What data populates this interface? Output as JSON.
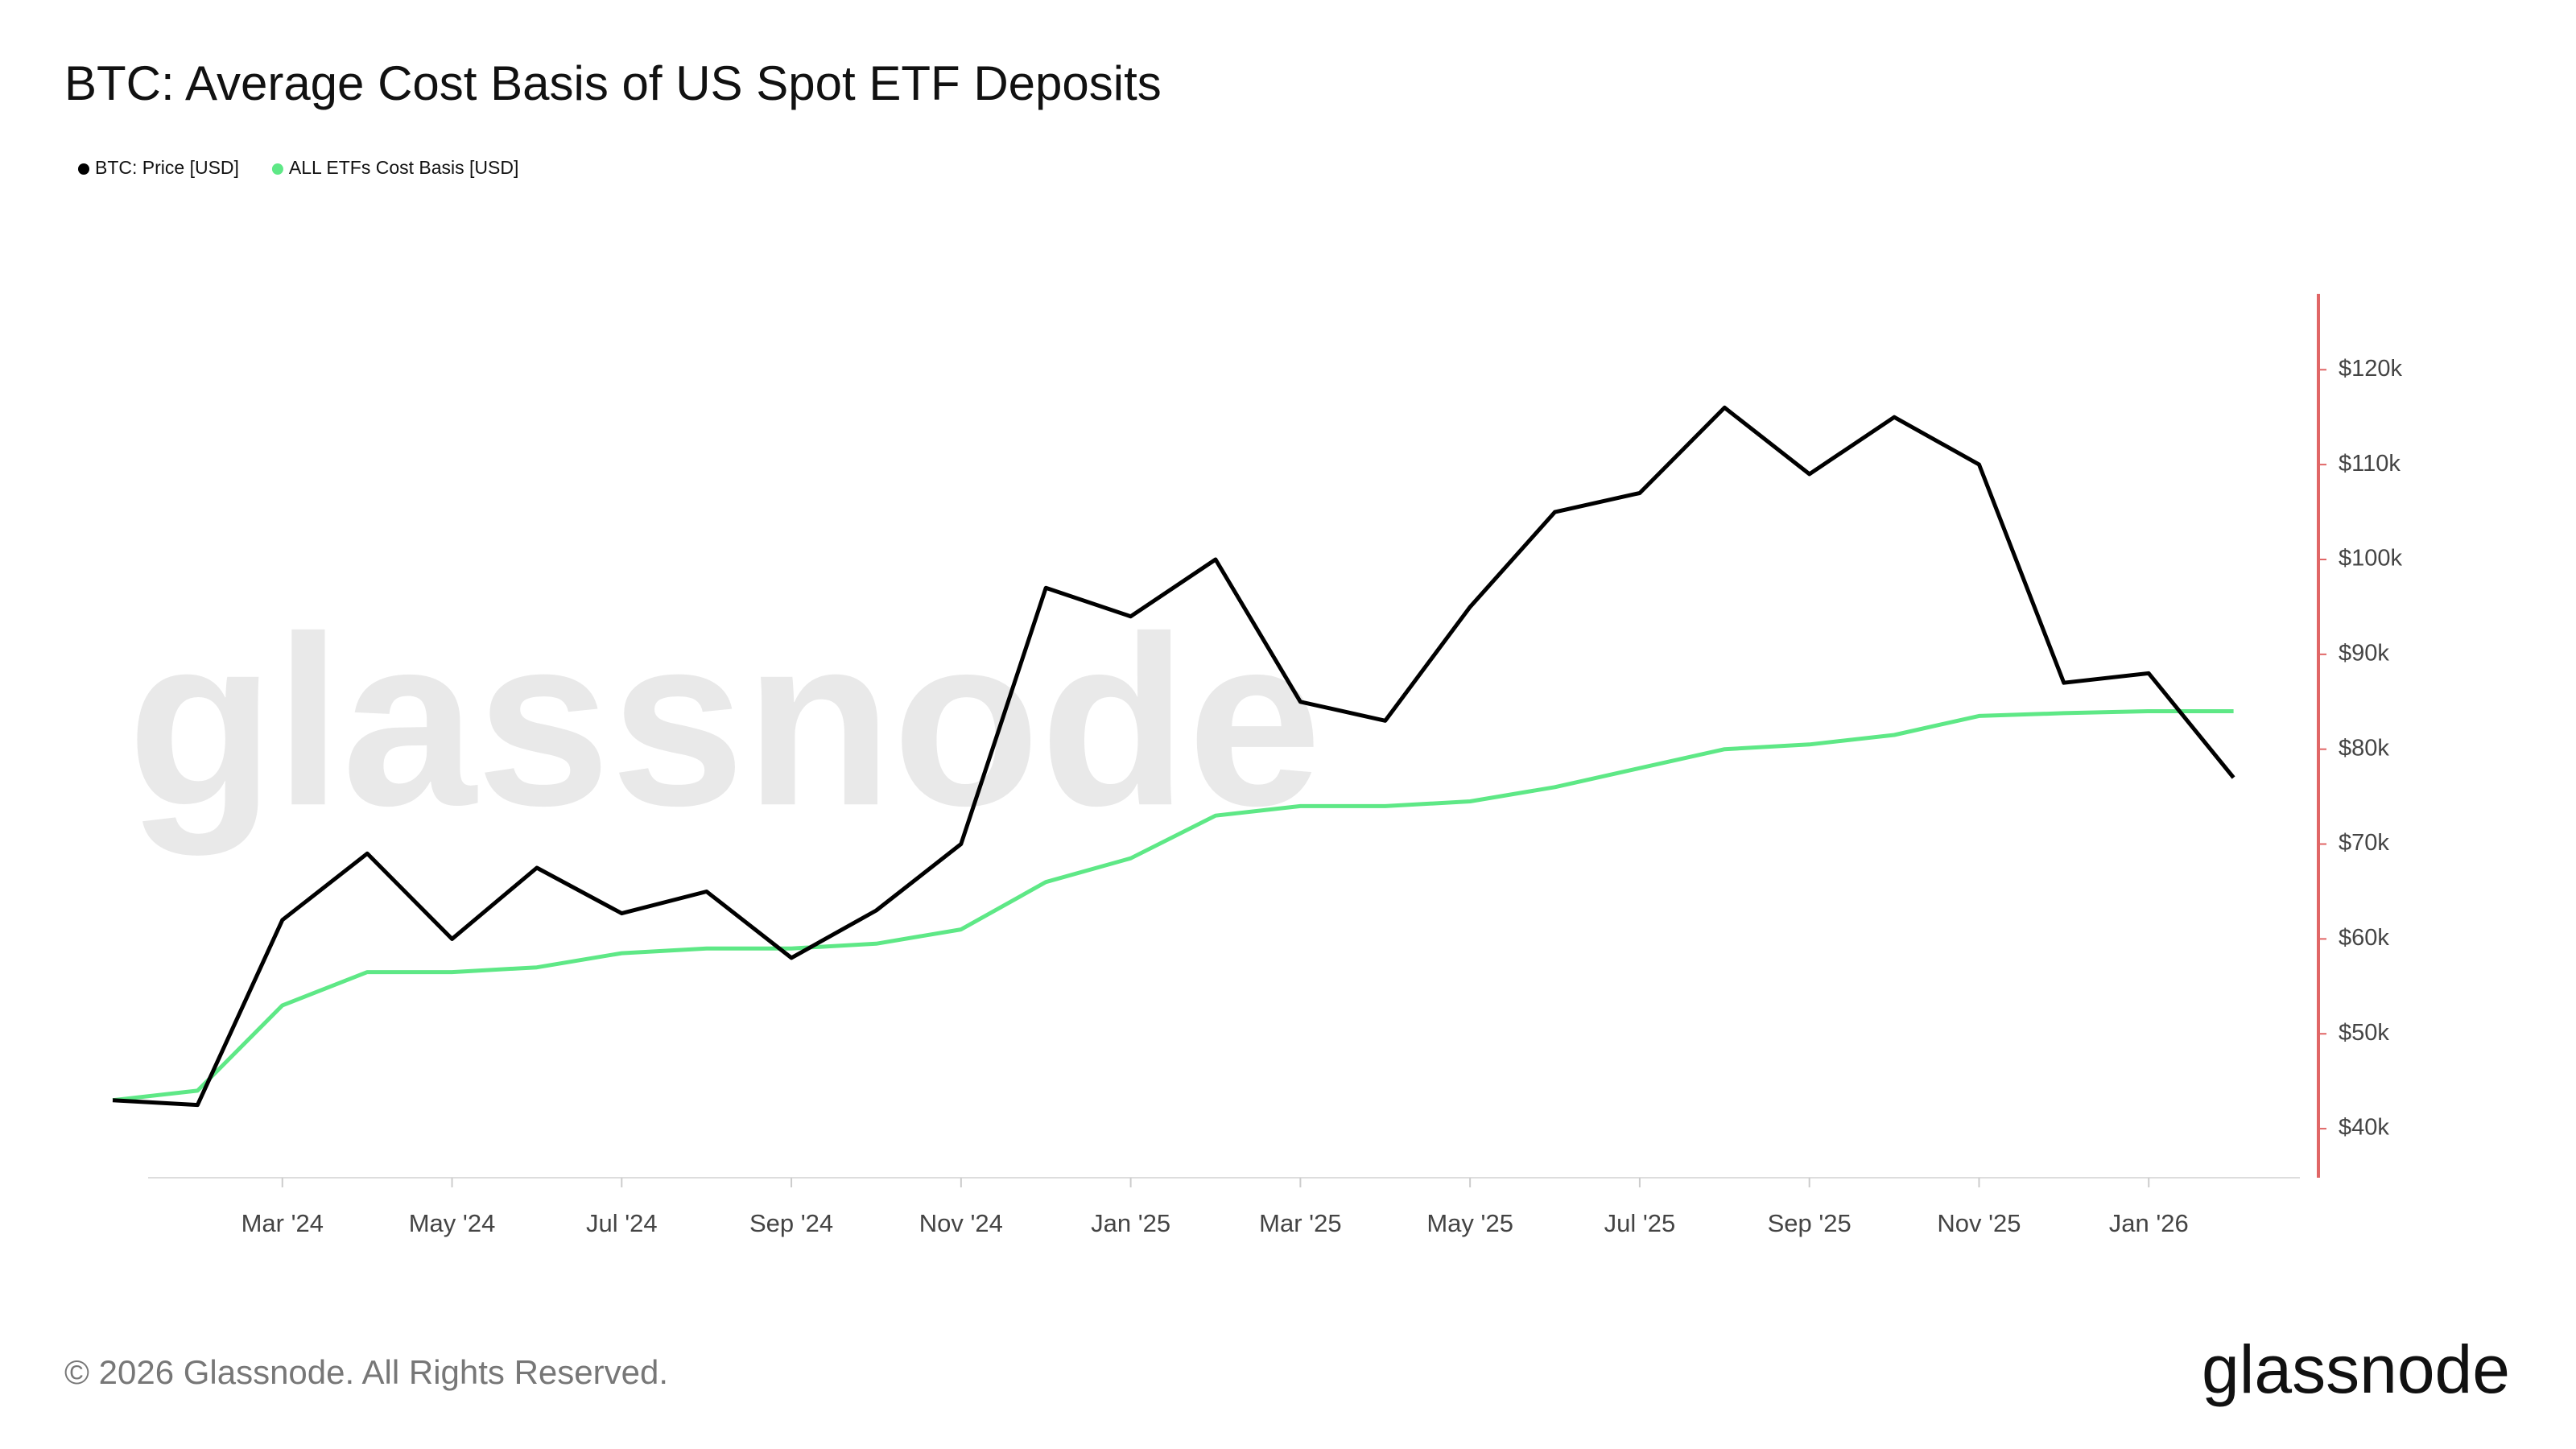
{
  "chart_data": {
    "type": "line",
    "title": "BTC: Average Cost Basis of US Spot ETF Deposits",
    "x": [
      "2024-01",
      "2024-02",
      "2024-03",
      "2024-04",
      "2024-05",
      "2024-06",
      "2024-07",
      "2024-08",
      "2024-09",
      "2024-10",
      "2024-11",
      "2024-12",
      "2025-01",
      "2025-02",
      "2025-03",
      "2025-04",
      "2025-05",
      "2025-06",
      "2025-07",
      "2025-08",
      "2025-09",
      "2025-10",
      "2025-11",
      "2025-12",
      "2026-01",
      "2026-02"
    ],
    "series": [
      {
        "name": "BTC: Price [USD]",
        "color": "#000000",
        "values": [
          43000,
          42500,
          62000,
          69000,
          60000,
          67500,
          62700,
          65000,
          58000,
          63000,
          70000,
          97000,
          94000,
          100000,
          85000,
          83000,
          95000,
          105000,
          107000,
          116000,
          109000,
          115000,
          110000,
          87000,
          88000,
          77000
        ]
      },
      {
        "name": "ALL ETFs Cost Basis [USD]",
        "color": "#5ee886",
        "values": [
          43000,
          44000,
          53000,
          56500,
          56500,
          57000,
          58500,
          59000,
          59000,
          59500,
          61000,
          66000,
          68500,
          73000,
          74000,
          74000,
          74500,
          76000,
          78000,
          80000,
          80500,
          81500,
          83500,
          83800,
          84000,
          84000
        ]
      }
    ],
    "xlim": [
      "2024-01",
      "2026-03"
    ],
    "xticks": [
      {
        "value": "2024-03",
        "label": "Mar '24"
      },
      {
        "value": "2024-05",
        "label": "May '24"
      },
      {
        "value": "2024-07",
        "label": "Jul '24"
      },
      {
        "value": "2024-09",
        "label": "Sep '24"
      },
      {
        "value": "2024-11",
        "label": "Nov '24"
      },
      {
        "value": "2025-01",
        "label": "Jan '25"
      },
      {
        "value": "2025-03",
        "label": "Mar '25"
      },
      {
        "value": "2025-05",
        "label": "May '25"
      },
      {
        "value": "2025-07",
        "label": "Jul '25"
      },
      {
        "value": "2025-09",
        "label": "Sep '25"
      },
      {
        "value": "2025-11",
        "label": "Nov '25"
      },
      {
        "value": "2026-01",
        "label": "Jan '26"
      }
    ],
    "ylim": [
      35000,
      128000
    ],
    "yticks": [
      {
        "value": 40000,
        "label": "$40k"
      },
      {
        "value": 50000,
        "label": "$50k"
      },
      {
        "value": 60000,
        "label": "$60k"
      },
      {
        "value": 70000,
        "label": "$70k"
      },
      {
        "value": 80000,
        "label": "$80k"
      },
      {
        "value": 90000,
        "label": "$90k"
      },
      {
        "value": 100000,
        "label": "$100k"
      },
      {
        "value": 110000,
        "label": "$110k"
      },
      {
        "value": 120000,
        "label": "$120k"
      }
    ],
    "watermark": "glassnode",
    "source": "© 2026 Glassnode. All Rights Reserved.",
    "logo": "glassnode"
  }
}
